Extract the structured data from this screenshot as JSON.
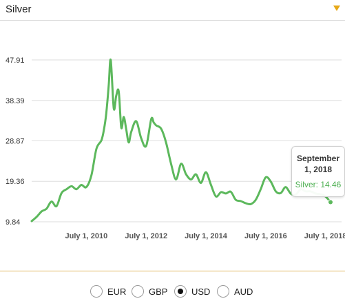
{
  "header": {
    "title": "Silver"
  },
  "tooltip": {
    "date_line1": "September",
    "date_line2": "1, 2018",
    "value": "Silver: 14.46"
  },
  "currencies": [
    {
      "label": "EUR",
      "checked": false
    },
    {
      "label": "GBP",
      "checked": false
    },
    {
      "label": "USD",
      "checked": true
    },
    {
      "label": "AUD",
      "checked": false
    }
  ],
  "colors": {
    "line": "#5cb85c",
    "grid": "#dddddd",
    "accent": "#e6a817"
  },
  "chart_data": {
    "type": "line",
    "title": "",
    "xlabel": "",
    "ylabel": "",
    "ylim": [
      9.84,
      47.91
    ],
    "xlim": [
      "2008-09-01",
      "2018-09-01"
    ],
    "y_ticks": [
      "9.84",
      "19.36",
      "28.87",
      "38.39",
      "47.91"
    ],
    "x_ticks": [
      "July 1, 2010",
      "July 1, 2012",
      "July 1, 2014",
      "July 1, 2016",
      "July 1, 2018"
    ],
    "grid": true,
    "series": [
      {
        "x": [
          "2008-09-01",
          "2008-11-01",
          "2009-01-01",
          "2009-03-01",
          "2009-05-01",
          "2009-07-01",
          "2009-09-01",
          "2009-11-01",
          "2010-01-01",
          "2010-03-01",
          "2010-05-01",
          "2010-07-01",
          "2010-09-01",
          "2010-11-01",
          "2011-01-01",
          "2011-02-01",
          "2011-03-01",
          "2011-04-01",
          "2011-04-25",
          "2011-06-01",
          "2011-07-01",
          "2011-08-01",
          "2011-09-01",
          "2011-10-01",
          "2011-11-01",
          "2011-12-01",
          "2012-01-01",
          "2012-03-01",
          "2012-05-01",
          "2012-07-01",
          "2012-09-01",
          "2012-10-01",
          "2012-11-01",
          "2013-01-01",
          "2013-03-01",
          "2013-05-01",
          "2013-07-01",
          "2013-09-01",
          "2013-11-01",
          "2014-01-01",
          "2014-03-01",
          "2014-05-01",
          "2014-07-01",
          "2014-09-01",
          "2014-11-01",
          "2015-01-01",
          "2015-03-01",
          "2015-05-01",
          "2015-07-01",
          "2015-09-01",
          "2015-11-01",
          "2016-01-01",
          "2016-03-01",
          "2016-05-01",
          "2016-07-01",
          "2016-09-01",
          "2016-11-01",
          "2017-01-01",
          "2017-03-01",
          "2017-05-01",
          "2017-07-01",
          "2017-09-01",
          "2017-11-01",
          "2018-01-01",
          "2018-03-01",
          "2018-05-01",
          "2018-07-01",
          "2018-09-01"
        ],
        "y": [
          10.0,
          11.0,
          12.3,
          12.9,
          14.6,
          13.5,
          16.6,
          17.5,
          18.2,
          17.5,
          18.5,
          18.0,
          20.8,
          27.0,
          29.0,
          31.5,
          35.3,
          42.0,
          47.9,
          36.5,
          39.5,
          40.5,
          32.0,
          34.5,
          31.5,
          28.5,
          31.0,
          33.5,
          29.5,
          27.7,
          34.0,
          33.2,
          32.5,
          31.7,
          28.5,
          23.5,
          19.8,
          23.5,
          21.0,
          19.8,
          21.0,
          19.0,
          21.5,
          18.5,
          15.8,
          16.8,
          16.5,
          16.9,
          15.0,
          14.7,
          14.2,
          14.0,
          15.0,
          17.5,
          20.3,
          19.3,
          17.0,
          16.6,
          18.0,
          16.5,
          16.2,
          17.5,
          17.0,
          17.0,
          16.5,
          16.3,
          15.8,
          14.46
        ]
      }
    ]
  }
}
